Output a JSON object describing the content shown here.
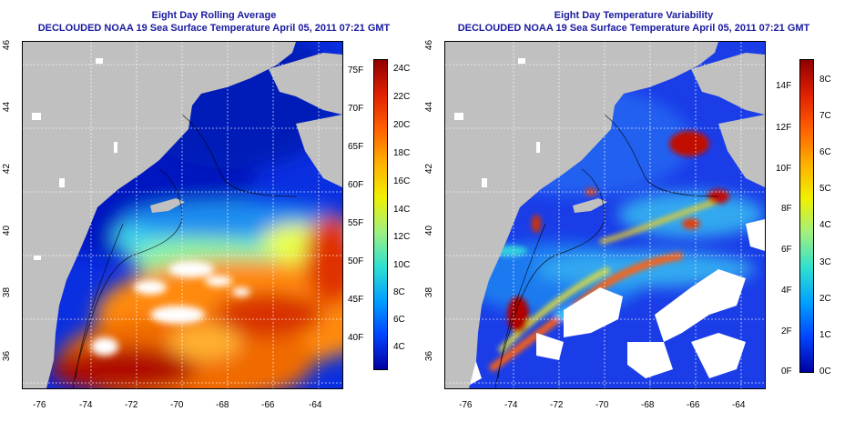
{
  "panels": [
    {
      "title_line1": "Eight Day Rolling Average",
      "title_line2": "DECLOUDED NOAA 19 Sea Surface Temperature April 05, 2011 07:21 GMT",
      "colorbar_left_labels": [
        "75F",
        "70F",
        "65F",
        "60F",
        "55F",
        "50F",
        "45F",
        "40F"
      ],
      "colorbar_right_labels": [
        "24C",
        "22C",
        "20C",
        "18C",
        "16C",
        "14C",
        "12C",
        "10C",
        "8C",
        "6C",
        "4C"
      ],
      "colorbar_stops": [
        "#0000a0",
        "#0044ff",
        "#00a0ff",
        "#30e0d0",
        "#a0f080",
        "#f0f000",
        "#ffb000",
        "#ff6000",
        "#e02000",
        "#900000"
      ]
    },
    {
      "title_line1": "Eight Day Temperature Variability",
      "title_line2": "DECLOUDED NOAA 19 Sea Surface Temperature April 05, 2011 07:21 GMT",
      "colorbar_left_labels": [
        "14F",
        "12F",
        "10F",
        "8F",
        "6F",
        "4F",
        "2F",
        "0F"
      ],
      "colorbar_right_labels": [
        "8C",
        "7C",
        "6C",
        "5C",
        "4C",
        "3C",
        "2C",
        "1C",
        "0C"
      ],
      "colorbar_stops": [
        "#0000a0",
        "#0044ff",
        "#00a0ff",
        "#30e0d0",
        "#a0f080",
        "#f0f000",
        "#ffb000",
        "#ff6000",
        "#e02000",
        "#900000"
      ]
    }
  ],
  "x_ticks": [
    "-76",
    "-74",
    "-72",
    "-70",
    "-68",
    "-66",
    "-64"
  ],
  "y_ticks": [
    "36",
    "38",
    "40",
    "42",
    "44",
    "46"
  ],
  "colors": {
    "land": "#c0c0c0",
    "title": "#1a1aa0",
    "cloud": "#ffffff"
  }
}
